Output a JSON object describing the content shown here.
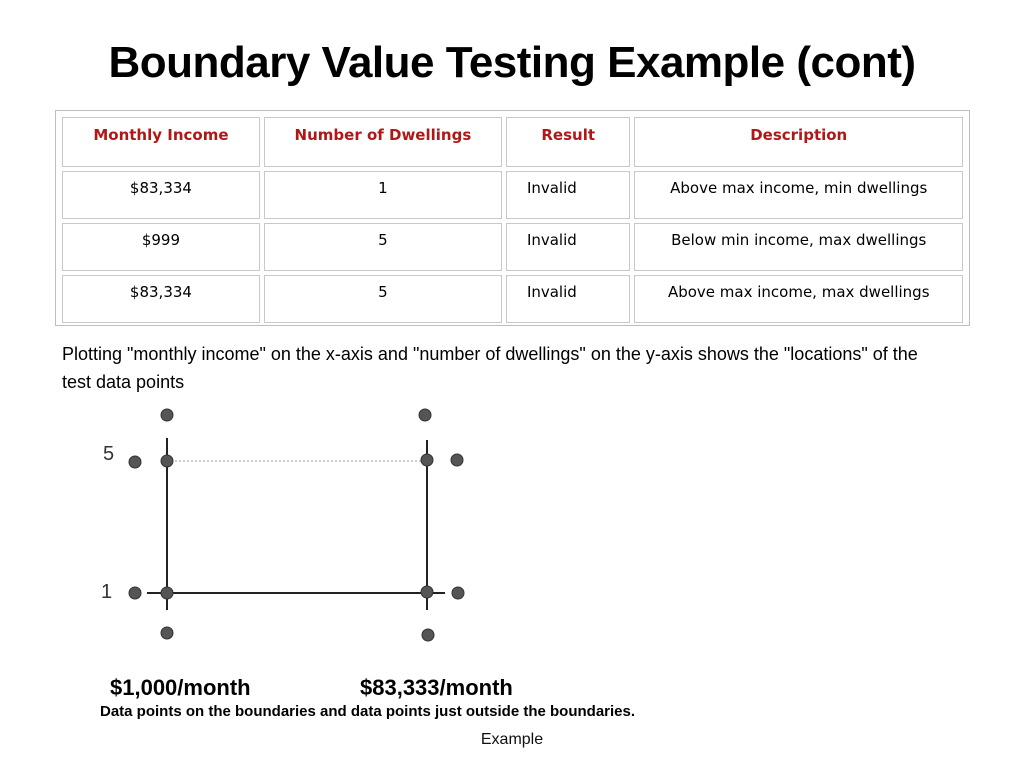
{
  "title": "Boundary Value Testing Example (cont)",
  "table": {
    "headers": [
      "Monthly Income",
      "Number of Dwellings",
      "Result",
      "Description"
    ],
    "rows": [
      [
        "$83,334",
        "1",
        "Invalid",
        "Above max income, min dwellings"
      ],
      [
        "$999",
        "5",
        "Invalid",
        "Below min income, max dwellings"
      ],
      [
        "$83,334",
        "5",
        "Invalid",
        "Above max income, max dwellings"
      ]
    ],
    "header_color": "#b01818"
  },
  "caption": "Plotting \"monthly income\" on the x-axis and \"number of dwellings\" on the y-axis shows the \"locations\" of the test data points",
  "plot": {
    "y_labels": [
      "5",
      "1"
    ],
    "x_labels": [
      "$1,000/month",
      "$83,333/month"
    ],
    "caption": "Data points on the boundaries and data points just outside the boundaries."
  },
  "footer": "Example"
}
